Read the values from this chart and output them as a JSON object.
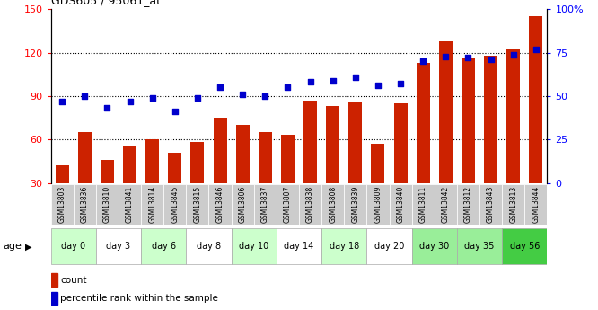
{
  "title": "GDS605 / 95061_at",
  "samples": [
    "GSM13803",
    "GSM13836",
    "GSM13810",
    "GSM13841",
    "GSM13814",
    "GSM13845",
    "GSM13815",
    "GSM13846",
    "GSM13806",
    "GSM13837",
    "GSM13807",
    "GSM13838",
    "GSM13808",
    "GSM13839",
    "GSM13809",
    "GSM13840",
    "GSM13811",
    "GSM13842",
    "GSM13812",
    "GSM13843",
    "GSM13813",
    "GSM13844"
  ],
  "counts": [
    42,
    65,
    46,
    55,
    60,
    51,
    58,
    75,
    70,
    65,
    63,
    87,
    83,
    86,
    57,
    85,
    113,
    128,
    116,
    118,
    122,
    145
  ],
  "percentiles": [
    47,
    50,
    43,
    47,
    49,
    41,
    49,
    55,
    51,
    50,
    55,
    58,
    59,
    61,
    56,
    57,
    70,
    73,
    72,
    71,
    74,
    77
  ],
  "age_groups": [
    {
      "label": "day 0",
      "start": 0,
      "end": 2,
      "color": "#ccffcc"
    },
    {
      "label": "day 3",
      "start": 2,
      "end": 4,
      "color": "#ffffff"
    },
    {
      "label": "day 6",
      "start": 4,
      "end": 6,
      "color": "#ccffcc"
    },
    {
      "label": "day 8",
      "start": 6,
      "end": 8,
      "color": "#ffffff"
    },
    {
      "label": "day 10",
      "start": 8,
      "end": 10,
      "color": "#ccffcc"
    },
    {
      "label": "day 14",
      "start": 10,
      "end": 12,
      "color": "#ffffff"
    },
    {
      "label": "day 18",
      "start": 12,
      "end": 14,
      "color": "#ccffcc"
    },
    {
      "label": "day 20",
      "start": 14,
      "end": 16,
      "color": "#ffffff"
    },
    {
      "label": "day 30",
      "start": 16,
      "end": 18,
      "color": "#99ee99"
    },
    {
      "label": "day 35",
      "start": 18,
      "end": 20,
      "color": "#99ee99"
    },
    {
      "label": "day 56",
      "start": 20,
      "end": 22,
      "color": "#44cc44"
    }
  ],
  "ylim_left": [
    30,
    150
  ],
  "ylim_right": [
    0,
    100
  ],
  "yticks_left": [
    30,
    60,
    90,
    120,
    150
  ],
  "yticks_right": [
    0,
    25,
    50,
    75,
    100
  ],
  "ytick_right_labels": [
    "0",
    "25",
    "50",
    "75",
    "100%"
  ],
  "bar_color": "#cc2200",
  "dot_color": "#0000cc",
  "background_color": "#ffffff",
  "legend_count": "count",
  "legend_pct": "percentile rank within the sample",
  "age_label": "age",
  "sample_row_color": "#cccccc",
  "gridline_yticks": [
    60,
    90,
    120
  ]
}
